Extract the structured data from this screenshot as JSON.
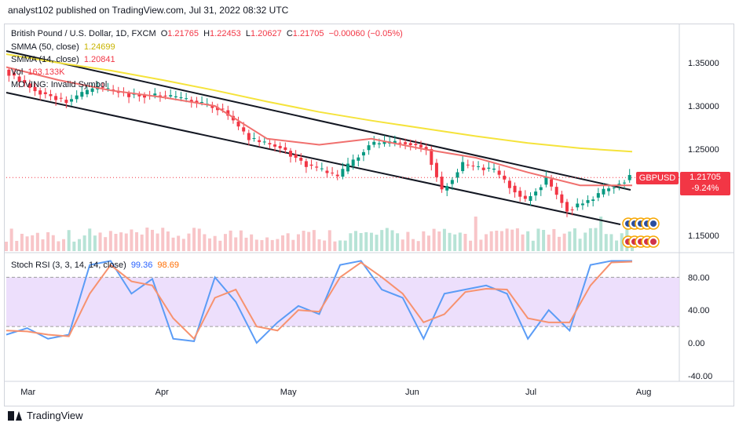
{
  "header": {
    "publisher_line": "analyst102 published on TradingView.com, Jul 31, 2022 08:32 UTC"
  },
  "legend": {
    "title": "British Pound / U.S. Dollar, 1D, FXCM",
    "o_label": "O",
    "o": "1.21765",
    "h_label": "H",
    "h": "1.22453",
    "l_label": "L",
    "l": "1.20627",
    "c_label": "C",
    "c": "1.21705",
    "change": "−0.00060 (−0.05%)",
    "smma50_label": "SMMA (50, close)",
    "smma50": "1.24699",
    "smma14_label": "SMMA (14, close)",
    "smma14": "1.20841",
    "vol_label": "Vol",
    "vol": "163.133K",
    "moving_label": "MOVING: Invalid Symbol",
    "stoch_label": "Stoch RSI (3, 3, 14, 14, close)",
    "stoch_k": "99.36",
    "stoch_d": "98.69"
  },
  "ticker": {
    "symbol": "GBPUSD",
    "price": "1.21705",
    "pct": "-9.24%"
  },
  "footer": {
    "brand": "TradingView"
  },
  "colors": {
    "up": "#089981",
    "down": "#f23645",
    "smma50": "#f5e33b",
    "smma14": "#f0706e",
    "k": "#5b9cf6",
    "d": "#f7926f",
    "band": "#e7d4fb"
  },
  "chart_data": [
    {
      "type": "candlestick",
      "title": "British Pound / U.S. Dollar, 1D, FXCM",
      "x_tick_labels": [
        "Mar",
        "Apr",
        "May",
        "Jun",
        "Jul",
        "Aug"
      ],
      "y_tick_labels": [
        "1.35000",
        "1.30000",
        "1.25000",
        "1.15000"
      ],
      "ylim": [
        1.13,
        1.39
      ],
      "last_price": 1.21705,
      "series": [
        {
          "name": "SMMA (50, close)",
          "x": [
            0,
            10,
            20,
            30,
            40,
            50,
            60,
            70,
            80,
            90,
            100,
            110,
            120
          ],
          "values": [
            1.36,
            1.35,
            1.341,
            1.33,
            1.318,
            1.305,
            1.293,
            1.283,
            1.274,
            1.265,
            1.257,
            1.251,
            1.247
          ]
        },
        {
          "name": "SMMA (14, close)",
          "x": [
            0,
            10,
            20,
            30,
            40,
            50,
            60,
            70,
            80,
            90,
            100,
            110,
            120
          ],
          "values": [
            1.345,
            1.33,
            1.318,
            1.31,
            1.3,
            1.262,
            1.255,
            1.262,
            1.25,
            1.24,
            1.223,
            1.208,
            1.208
          ]
        }
      ],
      "close_path": {
        "x": [
          0,
          6,
          12,
          18,
          24,
          30,
          36,
          42,
          47,
          53,
          58,
          64,
          70,
          76,
          79,
          81,
          84,
          88,
          94,
          100,
          104,
          108,
          112,
          116,
          120
        ],
        "values": [
          1.342,
          1.318,
          1.305,
          1.322,
          1.313,
          1.312,
          1.306,
          1.295,
          1.262,
          1.252,
          1.232,
          1.218,
          1.255,
          1.258,
          1.255,
          1.25,
          1.202,
          1.232,
          1.225,
          1.19,
          1.215,
          1.18,
          1.19,
          1.205,
          1.217
        ]
      }
    },
    {
      "type": "line",
      "title": "Stoch RSI (3, 3, 14, 14, close)",
      "y_tick_labels": [
        "80.00",
        "40.00",
        "0.00",
        "-40.00"
      ],
      "ylim": [
        -45,
        110
      ],
      "band": [
        20,
        80
      ],
      "series": [
        {
          "name": "K",
          "x": [
            0,
            4,
            8,
            12,
            16,
            20,
            24,
            28,
            32,
            36,
            40,
            44,
            48,
            52,
            56,
            60,
            64,
            68,
            72,
            76,
            80,
            84,
            88,
            92,
            96,
            100,
            104,
            108,
            112,
            116,
            120
          ],
          "values": [
            10,
            18,
            5,
            10,
            95,
            100,
            60,
            78,
            5,
            2,
            80,
            50,
            0,
            25,
            45,
            35,
            95,
            100,
            65,
            55,
            5,
            60,
            65,
            70,
            60,
            5,
            40,
            15,
            95,
            100,
            100
          ]
        },
        {
          "name": "D",
          "x": [
            0,
            4,
            8,
            12,
            16,
            20,
            24,
            28,
            32,
            36,
            40,
            44,
            48,
            52,
            56,
            60,
            64,
            68,
            72,
            76,
            80,
            84,
            88,
            92,
            96,
            100,
            104,
            108,
            112,
            116,
            120
          ],
          "values": [
            15,
            14,
            10,
            8,
            60,
            95,
            75,
            70,
            30,
            5,
            55,
            65,
            20,
            15,
            40,
            38,
            80,
            98,
            80,
            60,
            25,
            35,
            62,
            66,
            65,
            30,
            25,
            25,
            70,
            98,
            99
          ]
        }
      ]
    }
  ]
}
